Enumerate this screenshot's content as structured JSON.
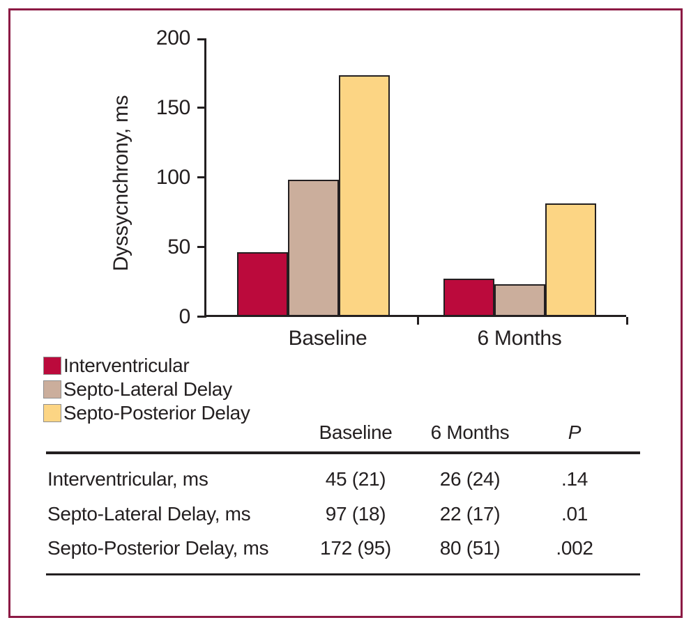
{
  "colors": {
    "frame_border": "#8c1a44",
    "axis": "#231f20",
    "interventricular": "#bb0a3c",
    "septo_lateral": "#cbae9c",
    "septo_posterior": "#fcd584"
  },
  "chart_data": {
    "type": "bar",
    "title": "",
    "ylabel": "Dyssycnchrony, ms",
    "xlabel": "",
    "ylim": [
      0,
      200
    ],
    "yticks": [
      0,
      50,
      100,
      150,
      200
    ],
    "grid": false,
    "legend_position": "bottom-left",
    "categories": [
      "Baseline",
      "6 Months"
    ],
    "series": [
      {
        "name": "Interventricular",
        "color": "#bb0a3c",
        "values": [
          45,
          26
        ]
      },
      {
        "name": "Septo-Lateral Delay",
        "color": "#cbae9c",
        "values": [
          97,
          22
        ]
      },
      {
        "name": "Septo-Posterior Delay",
        "color": "#fcd584",
        "values": [
          172,
          80
        ]
      }
    ]
  },
  "table": {
    "header": {
      "baseline": "Baseline",
      "six_months": "6 Months",
      "p": "P"
    },
    "rows": [
      {
        "label": "Interventricular, ms",
        "baseline": "45 (21)",
        "six_months": "26 (24)",
        "p": ".14"
      },
      {
        "label": "Septo-Lateral Delay, ms",
        "baseline": "97 (18)",
        "six_months": "22 (17)",
        "p": ".01"
      },
      {
        "label": "Septo-Posterior Delay, ms",
        "baseline": "172 (95)",
        "six_months": "80 (51)",
        "p": ".002"
      }
    ]
  }
}
